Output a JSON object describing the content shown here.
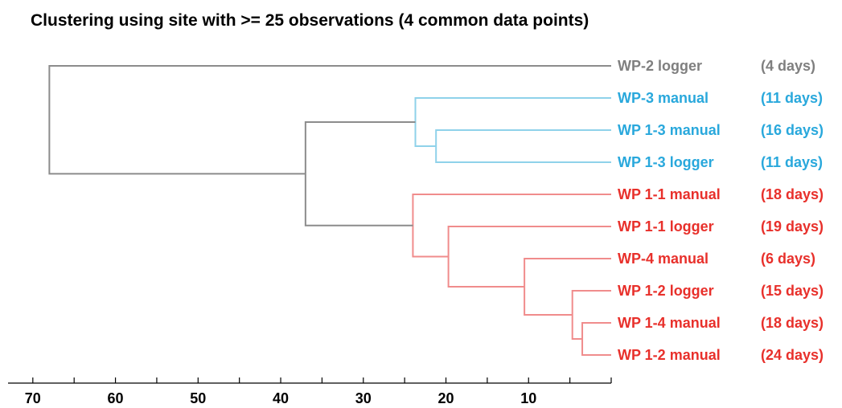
{
  "chart_data": {
    "type": "dendrogram",
    "title": "Clustering using site with >= 25 observations (4 common data points)",
    "xlim": [
      73,
      0
    ],
    "xticks": [
      70,
      60,
      50,
      40,
      30,
      20,
      10
    ],
    "colors": {
      "gray": "#7f7f7f",
      "blue": "#29a8dc",
      "red": "#e8302b",
      "link_gray": "#8c8c8c",
      "link_blue": "#8fd2ea",
      "link_red": "#f08c8c",
      "axis": "#000000"
    },
    "leaves": [
      {
        "name": "WP-2 logger",
        "days": "(4 days)",
        "color": "gray"
      },
      {
        "name": "WP-3 manual",
        "days": "(11 days)",
        "color": "blue"
      },
      {
        "name": "WP 1-3 manual",
        "days": "(16 days)",
        "color": "blue"
      },
      {
        "name": "WP 1-3 logger",
        "days": "(11 days)",
        "color": "blue"
      },
      {
        "name": "WP 1-1 manual",
        "days": "(18 days)",
        "color": "red"
      },
      {
        "name": "WP 1-1 logger",
        "days": "(19 days)",
        "color": "red"
      },
      {
        "name": "WP-4 manual",
        "days": "(6 days)",
        "color": "red"
      },
      {
        "name": "WP 1-2 logger",
        "days": "(15 days)",
        "color": "red"
      },
      {
        "name": "WP 1-4 manual",
        "days": "(18 days)",
        "color": "red"
      },
      {
        "name": "WP 1-2 manual",
        "days": "(24 days)",
        "color": "red"
      }
    ],
    "merges": [
      {
        "id": "n1",
        "height": 3.5,
        "children": [
          8,
          9
        ],
        "color": "red"
      },
      {
        "id": "n2",
        "height": 4.7,
        "children": [
          7,
          "n1"
        ],
        "color": "red"
      },
      {
        "id": "n3",
        "height": 10.5,
        "children": [
          6,
          "n2"
        ],
        "color": "red"
      },
      {
        "id": "n4",
        "height": 19.7,
        "children": [
          5,
          "n3"
        ],
        "color": "red"
      },
      {
        "id": "n5",
        "height": 24.0,
        "children": [
          4,
          "n4"
        ],
        "color": "red"
      },
      {
        "id": "n6",
        "height": 21.2,
        "children": [
          2,
          3
        ],
        "color": "blue"
      },
      {
        "id": "n7",
        "height": 23.7,
        "children": [
          1,
          "n6"
        ],
        "color": "blue"
      },
      {
        "id": "n8",
        "height": 37.0,
        "children": [
          "n7",
          "n5"
        ],
        "color": "link_gray"
      },
      {
        "id": "n9",
        "height": 68.0,
        "children": [
          0,
          "n8"
        ],
        "color": "link_gray"
      }
    ]
  }
}
